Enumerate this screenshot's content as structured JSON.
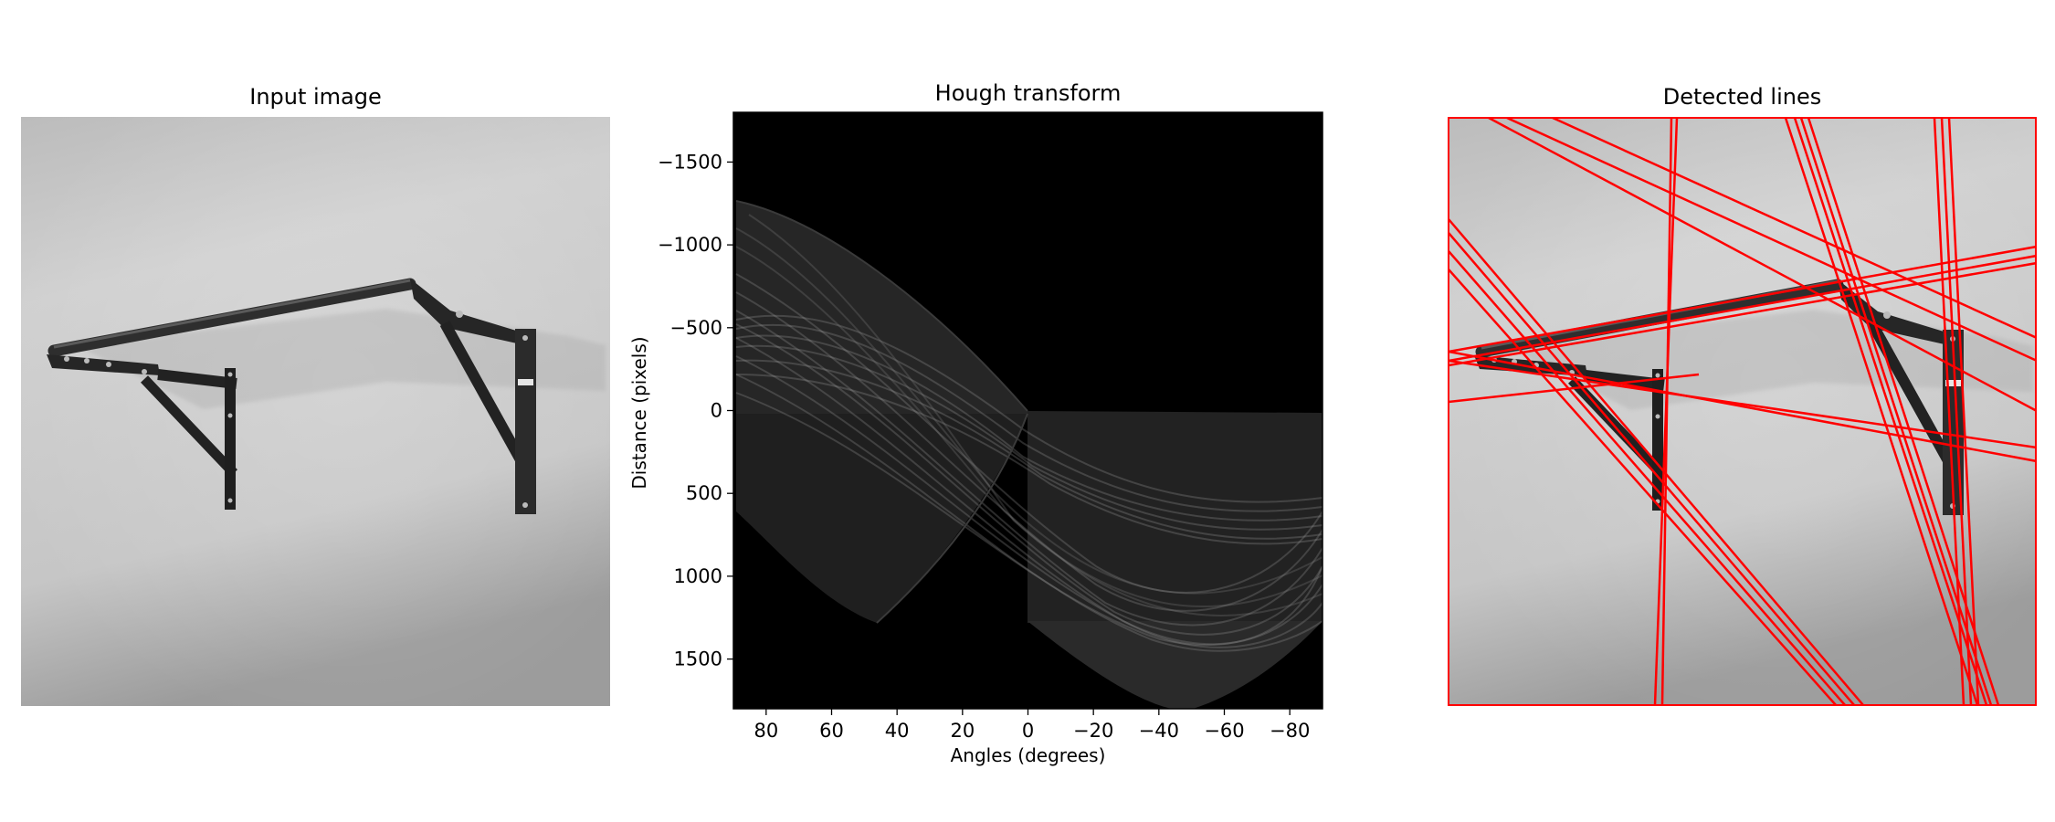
{
  "panels": {
    "input": {
      "title": "Input image"
    },
    "hough": {
      "title": "Hough transform",
      "xlabel": "Angles (degrees)",
      "ylabel": "Distance (pixels)"
    },
    "detected": {
      "title": "Detected lines"
    }
  },
  "colors": {
    "line": "#ff0000",
    "background": "#ffffff",
    "hough_background": "#000000"
  },
  "chart_data": [
    {
      "type": "image",
      "title": "Input image",
      "content": "grayscale photo of a wall-mounted pull-up bar"
    },
    {
      "type": "heatmap",
      "title": "Hough transform",
      "xlabel": "Angles (degrees)",
      "ylabel": "Distance (pixels)",
      "xlim": [
        90,
        -90
      ],
      "ylim": [
        1800,
        -1800
      ],
      "xticks": [
        80,
        60,
        40,
        20,
        0,
        -20,
        -40,
        -60,
        -80
      ],
      "xtick_labels": [
        "80",
        "60",
        "40",
        "20",
        "0",
        "−20",
        "−40",
        "−60",
        "−80"
      ],
      "yticks": [
        -1500,
        -1000,
        -500,
        0,
        500,
        1000,
        1500
      ],
      "ytick_labels": [
        "−1500",
        "−1000",
        "−500",
        "0",
        "500",
        "1000",
        "1500"
      ],
      "colormap": "gray"
    },
    {
      "type": "line",
      "title": "Detected lines",
      "line_color": "#ff0000",
      "line_count": 22
    }
  ]
}
